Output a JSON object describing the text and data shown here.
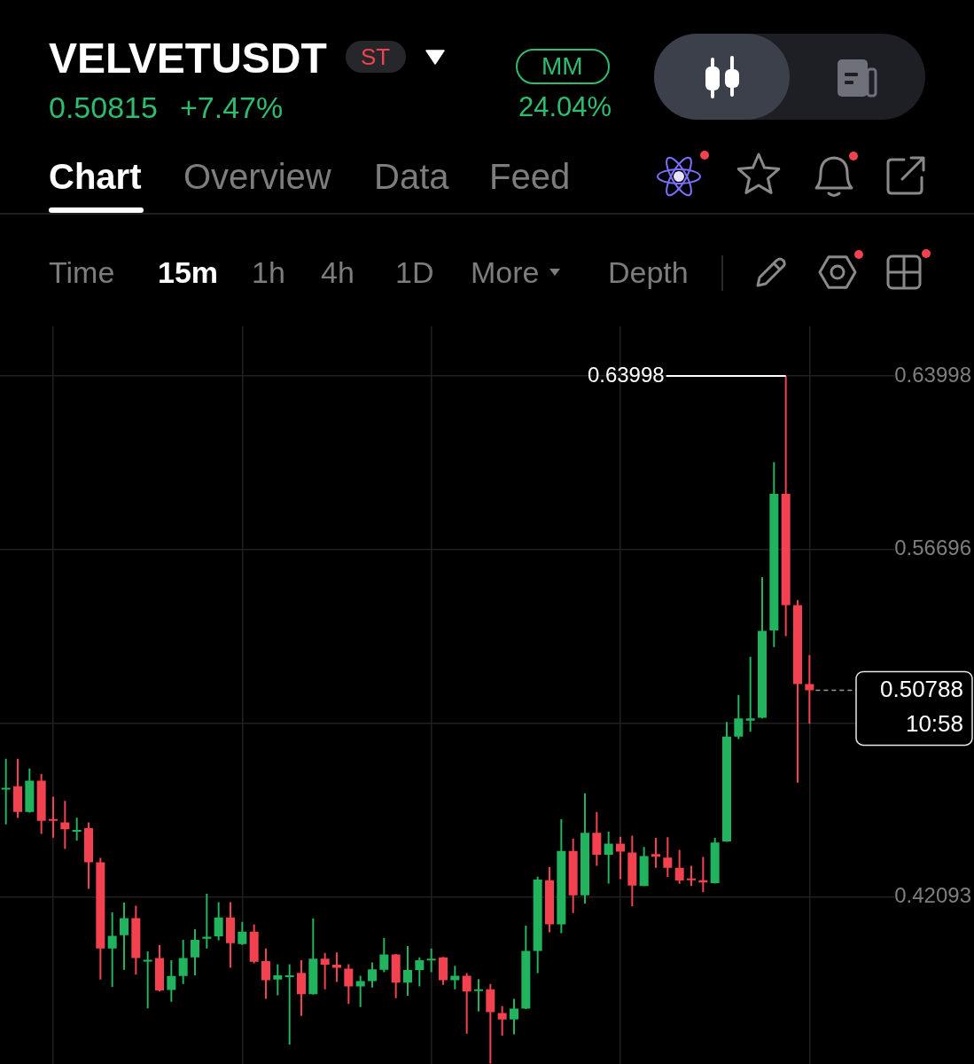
{
  "chart_data": {
    "type": "candlestick",
    "title": "VELVETUSDT",
    "annotations": [
      "ST",
      "0.50815",
      "+7.47%",
      "MM",
      "24.04%",
      "Chart",
      "Overview",
      "Data",
      "Feed",
      "Time",
      "15m",
      "1h",
      "4h",
      "1D",
      "More",
      "Depth",
      "0.63998"
    ],
    "categories": [
      null,
      null,
      null,
      null,
      null,
      null,
      null,
      null,
      null,
      null,
      null,
      null,
      null,
      null,
      null,
      null,
      null,
      null,
      null,
      null,
      null,
      null,
      null,
      null,
      null,
      null,
      null,
      null,
      null,
      null,
      null,
      null,
      null,
      null,
      null,
      null,
      null,
      null,
      null,
      null,
      null,
      null,
      null,
      null,
      null,
      null,
      null,
      null,
      null,
      null,
      null,
      null,
      null,
      null,
      null,
      null,
      null,
      null,
      null,
      null,
      null,
      null,
      null,
      null,
      null,
      null,
      null,
      null,
      null
    ],
    "ohlc": [
      [
        0.4665,
        0.4791,
        0.4515,
        0.4669
      ],
      [
        0.4675,
        0.4791,
        0.4542,
        0.4567
      ],
      [
        0.4567,
        0.475,
        0.4564,
        0.4698
      ],
      [
        0.4698,
        0.4726,
        0.4475,
        0.453
      ],
      [
        0.4537,
        0.4631,
        0.4459,
        0.453
      ],
      [
        0.4523,
        0.4614,
        0.4412,
        0.4494
      ],
      [
        0.4485,
        0.4543,
        0.4447,
        0.4492
      ],
      [
        0.4499,
        0.4523,
        0.4244,
        0.4356
      ],
      [
        0.4356,
        0.4374,
        0.3863,
        0.3993
      ],
      [
        0.3993,
        0.4145,
        0.3832,
        0.4046
      ],
      [
        0.4049,
        0.4186,
        0.3904,
        0.4121
      ],
      [
        0.4121,
        0.4173,
        0.3884,
        0.3953
      ],
      [
        0.394,
        0.3981,
        0.3742,
        0.3946
      ],
      [
        0.3953,
        0.4008,
        0.3813,
        0.3817
      ],
      [
        0.3819,
        0.3944,
        0.377,
        0.3878
      ],
      [
        0.3878,
        0.403,
        0.3844,
        0.3953
      ],
      [
        0.3956,
        0.4074,
        0.3881,
        0.403
      ],
      [
        0.4034,
        0.4223,
        0.3993,
        0.4043
      ],
      [
        0.4045,
        0.4188,
        0.4028,
        0.4124
      ],
      [
        0.4124,
        0.4188,
        0.3912,
        0.4016
      ],
      [
        0.4012,
        0.4105,
        0.4008,
        0.4064
      ],
      [
        0.4064,
        0.4095,
        0.3931,
        0.3937
      ],
      [
        0.394,
        0.3993,
        0.3782,
        0.386
      ],
      [
        0.3863,
        0.3927,
        0.3797,
        0.3881
      ],
      [
        0.3876,
        0.3927,
        0.359,
        0.3881
      ],
      [
        0.3891,
        0.3944,
        0.371,
        0.3801
      ],
      [
        0.3801,
        0.412,
        0.38,
        0.395
      ],
      [
        0.395,
        0.3975,
        0.3822,
        0.3925
      ],
      [
        0.3925,
        0.3977,
        0.3853,
        0.3912
      ],
      [
        0.3909,
        0.3927,
        0.376,
        0.3834
      ],
      [
        0.3834,
        0.3879,
        0.3747,
        0.3856
      ],
      [
        0.3856,
        0.3935,
        0.3829,
        0.3906
      ],
      [
        0.3904,
        0.4037,
        0.3894,
        0.3968
      ],
      [
        0.3968,
        0.397,
        0.3785,
        0.385
      ],
      [
        0.385,
        0.4004,
        0.3795,
        0.3903
      ],
      [
        0.3903,
        0.3956,
        0.3834,
        0.3944
      ],
      [
        0.3944,
        0.3993,
        0.3894,
        0.395
      ],
      [
        0.3956,
        0.3958,
        0.3841,
        0.386
      ],
      [
        0.386,
        0.3921,
        0.3822,
        0.3879
      ],
      [
        0.3879,
        0.389,
        0.3636,
        0.3813
      ],
      [
        0.3814,
        0.3865,
        0.3729,
        0.3822
      ],
      [
        0.3822,
        0.3844,
        0.351,
        0.3726
      ],
      [
        0.3722,
        0.3751,
        0.3627,
        0.3695
      ],
      [
        0.3695,
        0.3782,
        0.3633,
        0.3741
      ],
      [
        0.3741,
        0.4089,
        0.3739,
        0.3983
      ],
      [
        0.3983,
        0.4295,
        0.389,
        0.4283
      ],
      [
        0.428,
        0.4335,
        0.4061,
        0.4095
      ],
      [
        0.4095,
        0.4536,
        0.4058,
        0.4403
      ],
      [
        0.4403,
        0.4455,
        0.4142,
        0.4217
      ],
      [
        0.4217,
        0.4645,
        0.4182,
        0.448
      ],
      [
        0.448,
        0.4567,
        0.4341,
        0.4387
      ],
      [
        0.4387,
        0.4484,
        0.4266,
        0.4434
      ],
      [
        0.4434,
        0.4463,
        0.4285,
        0.44
      ],
      [
        0.4397,
        0.4467,
        0.4171,
        0.4258
      ],
      [
        0.4256,
        0.442,
        0.4255,
        0.4382
      ],
      [
        0.439,
        0.4458,
        0.4332,
        0.4379
      ],
      [
        0.4375,
        0.4461,
        0.4294,
        0.4332
      ],
      [
        0.4332,
        0.4408,
        0.4265,
        0.4279
      ],
      [
        0.4288,
        0.4341,
        0.4256,
        0.428
      ],
      [
        0.428,
        0.4378,
        0.423,
        0.4271
      ],
      [
        0.4268,
        0.4458,
        0.4266,
        0.4439
      ],
      [
        0.4443,
        0.4945,
        0.4441,
        0.4884
      ],
      [
        0.4884,
        0.5059,
        0.4874,
        0.496
      ],
      [
        0.4951,
        0.5219,
        0.4904,
        0.496
      ],
      [
        0.4963,
        0.5554,
        0.496,
        0.5328
      ],
      [
        0.533,
        0.6037,
        0.526,
        0.5904
      ],
      [
        0.5904,
        0.63998,
        0.5306,
        0.5436
      ],
      [
        0.5436,
        0.5458,
        0.469,
        0.5105
      ],
      [
        0.5105,
        0.5227,
        0.4938,
        0.50788
      ]
    ],
    "colors": [
      "#22b35e",
      "#f2414f",
      "#22b35e",
      "#f2414f",
      "#f2414f",
      "#f2414f",
      "#22b35e",
      "#f2414f",
      "#f2414f",
      "#22b35e",
      "#22b35e",
      "#f2414f",
      "#22b35e",
      "#f2414f",
      "#22b35e",
      "#22b35e",
      "#22b35e",
      "#22b35e",
      "#22b35e",
      "#f2414f",
      "#22b35e",
      "#f2414f",
      "#f2414f",
      "#22b35e",
      "#22b35e",
      "#f2414f",
      "#22b35e",
      "#f2414f",
      "#f2414f",
      "#f2414f",
      "#22b35e",
      "#22b35e",
      "#22b35e",
      "#f2414f",
      "#22b35e",
      "#22b35e",
      "#22b35e",
      "#f2414f",
      "#22b35e",
      "#f2414f",
      "#22b35e",
      "#f2414f",
      "#f2414f",
      "#22b35e",
      "#22b35e",
      "#22b35e",
      "#f2414f",
      "#22b35e",
      "#f2414f",
      "#22b35e",
      "#f2414f",
      "#22b35e",
      "#f2414f",
      "#f2414f",
      "#22b35e",
      "#f2414f",
      "#f2414f",
      "#f2414f",
      "#f2414f",
      "#f2414f",
      "#22b35e",
      "#22b35e",
      "#22b35e",
      "#22b35e",
      "#22b35e",
      "#22b35e",
      "#f2414f",
      "#f2414f",
      "#f2414f"
    ],
    "ylim": [
      0.3508,
      0.6608
    ],
    "yticks": [
      0.42093,
      {
        "value": 0.49395,
        "label": null
      },
      0.56696,
      0.63998
    ],
    "grid": true,
    "tick_labels": "y",
    "ref_lines": [
      {
        "axis": "y",
        "value": 0.50788,
        "label": "0.50788\n10:58",
        "line_style": "dashed"
      }
    ]
  }
}
